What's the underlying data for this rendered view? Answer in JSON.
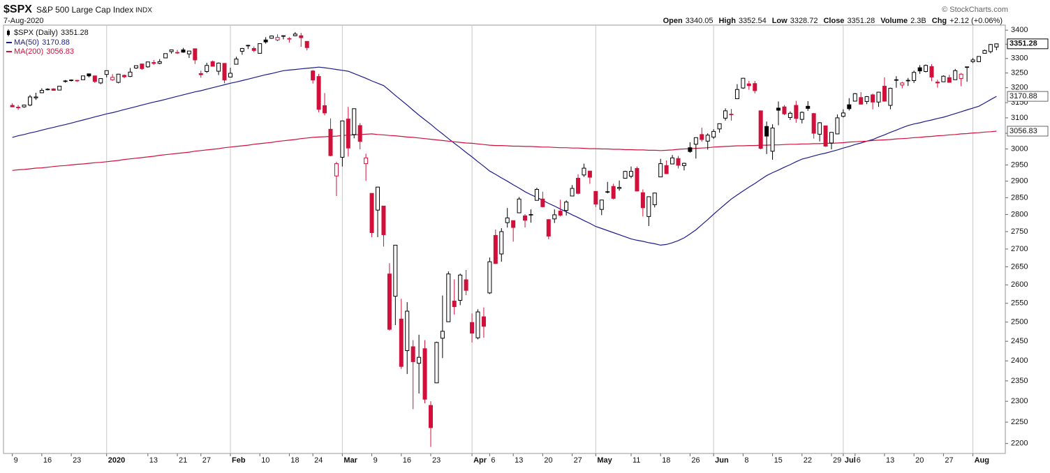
{
  "chart_data": {
    "type": "candlestick",
    "symbol": "$SPX",
    "title": "S&P 500 Large Cap Index",
    "exchange": "INDX",
    "date": "7-Aug-2020",
    "credit": "© StockCharts.com",
    "legend_label": "$SPX (Daily)",
    "stat_labels": [
      "Open",
      "High",
      "Low",
      "Close",
      "Volume",
      "Chg"
    ],
    "volume": "2.3B",
    "change": "+2.12 (+0.06%)",
    "up_color": "#000000",
    "down_color": "#d0103a",
    "log_scale": true,
    "ylim": [
      2177,
      3418
    ],
    "yticks": [
      2200,
      2250,
      2300,
      2350,
      2400,
      2450,
      2500,
      2550,
      2600,
      2650,
      2700,
      2750,
      2800,
      2850,
      2900,
      2950,
      3000,
      3050,
      3100,
      3150,
      3200,
      3250,
      3300,
      3350,
      3400
    ],
    "xlim": [
      -1.5,
      168.5
    ],
    "xticks": [
      {
        "value": 0,
        "label": "9"
      },
      {
        "value": 5,
        "label": "16"
      },
      {
        "value": 10,
        "label": "23"
      },
      {
        "value": 16,
        "label": "2020"
      },
      {
        "value": 23,
        "label": "13"
      },
      {
        "value": 28,
        "label": "21"
      },
      {
        "value": 32,
        "label": "27"
      },
      {
        "value": 37,
        "label": "Feb"
      },
      {
        "value": 42,
        "label": "10"
      },
      {
        "value": 47,
        "label": "18"
      },
      {
        "value": 51,
        "label": "24"
      },
      {
        "value": 56,
        "label": "Mar"
      },
      {
        "value": 61,
        "label": "9"
      },
      {
        "value": 66,
        "label": "16"
      },
      {
        "value": 71,
        "label": "23"
      },
      {
        "value": 78,
        "label": "Apr"
      },
      {
        "value": 81,
        "label": "6"
      },
      {
        "value": 85,
        "label": "13"
      },
      {
        "value": 90,
        "label": "20"
      },
      {
        "value": 95,
        "label": "27"
      },
      {
        "value": 99,
        "label": "May"
      },
      {
        "value": 105,
        "label": "11"
      },
      {
        "value": 110,
        "label": "18"
      },
      {
        "value": 115,
        "label": "26"
      },
      {
        "value": 119,
        "label": "Jun"
      },
      {
        "value": 124,
        "label": "8"
      },
      {
        "value": 129,
        "label": "15"
      },
      {
        "value": 134,
        "label": "22"
      },
      {
        "value": 139,
        "label": "29"
      },
      {
        "value": 141,
        "label": "Jul"
      },
      {
        "value": 143,
        "label": "6"
      },
      {
        "value": 148,
        "label": "13"
      },
      {
        "value": 153,
        "label": "20"
      },
      {
        "value": 158,
        "label": "27"
      },
      {
        "value": 163,
        "label": "Aug"
      }
    ],
    "open": [
      3141,
      3135,
      3136,
      3142,
      3166,
      3183,
      3195,
      3196,
      3192,
      3223,
      3226,
      3225,
      3227,
      3247,
      3240,
      3216,
      3245,
      3227,
      3218,
      3242,
      3238,
      3267,
      3281,
      3271,
      3286,
      3283,
      3302,
      3324,
      3321,
      3330,
      3316,
      3334,
      3248,
      3255,
      3289,
      3256,
      3283,
      3236,
      3280,
      3325,
      3344,
      3335,
      3318,
      3365,
      3371,
      3365,
      3378,
      3369,
      3380,
      3380,
      3360,
      3257,
      3238,
      3140,
      3063,
      2916,
      2974,
      3096,
      3046,
      3075,
      2954,
      2863,
      2813,
      2825,
      2630,
      2569,
      2508,
      2426,
      2436,
      2394,
      2431,
      2290,
      2345,
      2458,
      2501,
      2556,
      2558,
      2614,
      2499,
      2459,
      2514,
      2578,
      2739,
      2686,
      2776,
      2782,
      2805,
      2796,
      2799,
      2842,
      2846,
      2785,
      2787,
      2810,
      2812,
      2855,
      2909,
      2919,
      2931,
      2869,
      2815,
      2868,
      2884,
      2878,
      2909,
      2915,
      2939,
      2865,
      2794,
      2829,
      2913,
      2948,
      2953,
      2970,
      2948,
      3004,
      3015,
      3046,
      3025,
      3038,
      3064,
      3099,
      3112,
      3163,
      3199,
      3213,
      3214,
      3123,
      3072,
      2993,
      3132,
      3136,
      3101,
      3141,
      3095,
      3138,
      3114,
      3047,
      3074,
      3019,
      3048,
      3105,
      3143,
      3155,
      3167,
      3154,
      3176,
      3152,
      3205,
      3141,
      3225,
      3209,
      3224,
      3224,
      3268,
      3255,
      3272,
      3219,
      3220,
      3234,
      3227,
      3231,
      3270,
      3289,
      3289,
      3318,
      3324,
      3340.05
    ],
    "high": [
      3148,
      3142,
      3143,
      3176,
      3183,
      3198,
      3198,
      3198,
      3205,
      3226,
      3228,
      3226,
      3240,
      3248,
      3240,
      3232,
      3258,
      3246,
      3247,
      3245,
      3267,
      3275,
      3282,
      3288,
      3295,
      3298,
      3317,
      3330,
      3330,
      3337,
      3326,
      3334,
      3258,
      3285,
      3293,
      3286,
      3283,
      3268,
      3306,
      3337,
      3348,
      3342,
      3352,
      3375,
      3381,
      3385,
      3381,
      3375,
      3393,
      3390,
      3360,
      3260,
      3247,
      3182,
      3098,
      2960,
      3090,
      3136,
      3130,
      3083,
      2985,
      2863,
      2883,
      2825,
      2660,
      2711,
      2562,
      2553,
      2453,
      2467,
      2453,
      2300,
      2449,
      2571,
      2637,
      2615,
      2631,
      2641,
      2523,
      2534,
      2539,
      2676,
      2756,
      2760,
      2819,
      2782,
      2852,
      2801,
      2815,
      2880,
      2868,
      2786,
      2815,
      2844,
      2842,
      2888,
      2921,
      2954,
      2931,
      2869,
      2844,
      2898,
      2892,
      2902,
      2932,
      2945,
      2945,
      2875,
      2852,
      2865,
      2969,
      2964,
      2981,
      2978,
      2957,
      3021,
      3037,
      3068,
      3050,
      3063,
      3082,
      3131,
      3129,
      3212,
      3233,
      3223,
      3223,
      3123,
      3088,
      3079,
      3154,
      3142,
      3121,
      3156,
      3121,
      3155,
      3116,
      3086,
      3074,
      3053,
      3111,
      3128,
      3165,
      3182,
      3185,
      3172,
      3180,
      3186,
      3235,
      3200,
      3239,
      3220,
      3233,
      3258,
      3277,
      3279,
      3280,
      3227,
      3242,
      3244,
      3264,
      3250,
      3272,
      3302,
      3307,
      3331,
      3351,
      3352.54
    ],
    "low": [
      3135,
      3126,
      3133,
      3138,
      3159,
      3183,
      3191,
      3191,
      3192,
      3217,
      3221,
      3220,
      3227,
      3235,
      3216,
      3212,
      3235,
      3223,
      3215,
      3232,
      3236,
      3264,
      3261,
      3268,
      3278,
      3280,
      3302,
      3317,
      3316,
      3320,
      3302,
      3281,
      3234,
      3250,
      3272,
      3243,
      3215,
      3236,
      3280,
      3313,
      3333,
      3322,
      3317,
      3352,
      3369,
      3361,
      3367,
      3356,
      3378,
      3341,
      3328,
      3214,
      3118,
      3108,
      2977,
      2855,
      2945,
      2976,
      3034,
      2999,
      2901,
      2734,
      2734,
      2707,
      2478,
      2492,
      2380,
      2367,
      2281,
      2319,
      2295,
      2192,
      2345,
      2407,
      2501,
      2520,
      2545,
      2572,
      2447,
      2455,
      2459,
      2575,
      2658,
      2664,
      2762,
      2721,
      2805,
      2762,
      2776,
      2842,
      2821,
      2728,
      2775,
      2794,
      2797,
      2855,
      2860,
      2913,
      2892,
      2822,
      2798,
      2863,
      2845,
      2871,
      2909,
      2909,
      2869,
      2794,
      2766,
      2821,
      2913,
      2922,
      2953,
      2939,
      2933,
      2988,
      2970,
      3023,
      2998,
      3032,
      3052,
      3091,
      3091,
      3163,
      3196,
      3193,
      3181,
      2999,
      2984,
      2966,
      3076,
      3109,
      3093,
      3084,
      3082,
      3123,
      3033,
      3024,
      3007,
      2999,
      3047,
      3101,
      3124,
      3155,
      3144,
      3145,
      3128,
      3136,
      3153,
      3128,
      3200,
      3198,
      3206,
      3216,
      3247,
      3252,
      3222,
      3200,
      3220,
      3217,
      3227,
      3205,
      3220,
      3284,
      3288,
      3318,
      3318,
      3328.72
    ],
    "close": [
      3136,
      3133,
      3142,
      3169,
      3169,
      3191,
      3193,
      3191,
      3205,
      3221,
      3224,
      3223,
      3240,
      3240,
      3221,
      3231,
      3258,
      3235,
      3246,
      3237,
      3253,
      3275,
      3265,
      3288,
      3283,
      3289,
      3317,
      3330,
      3321,
      3322,
      3326,
      3295,
      3244,
      3276,
      3273,
      3284,
      3226,
      3249,
      3298,
      3335,
      3346,
      3328,
      3352,
      3358,
      3379,
      3374,
      3380,
      3370,
      3386,
      3373,
      3338,
      3226,
      3128,
      3116,
      2979,
      2954,
      3090,
      3003,
      3130,
      3024,
      2972,
      2747,
      2882,
      2741,
      2481,
      2711,
      2386,
      2529,
      2398,
      2409,
      2305,
      2237,
      2447,
      2476,
      2630,
      2541,
      2627,
      2585,
      2471,
      2527,
      2489,
      2664,
      2659,
      2750,
      2790,
      2762,
      2846,
      2783,
      2800,
      2875,
      2823,
      2737,
      2799,
      2798,
      2837,
      2878,
      2863,
      2940,
      2912,
      2831,
      2843,
      2868,
      2848,
      2881,
      2930,
      2930,
      2870,
      2820,
      2853,
      2864,
      2954,
      2923,
      2972,
      2949,
      2955,
      2992,
      3036,
      3030,
      3044,
      3056,
      3081,
      3123,
      3112,
      3194,
      3232,
      3207,
      3190,
      3002,
      3041,
      3067,
      3125,
      3113,
      3115,
      3098,
      3118,
      3131,
      3050,
      3084,
      3009,
      3053,
      3100,
      3116,
      3130,
      3180,
      3145,
      3170,
      3152,
      3185,
      3155,
      3198,
      3227,
      3216,
      3225,
      3252,
      3257,
      3276,
      3236,
      3216,
      3239,
      3218,
      3258,
      3246,
      3271,
      3295,
      3307,
      3328,
      3349,
      3351.28
    ],
    "overlays": [
      {
        "name": "MA(50)",
        "color": "#1c1c8c",
        "values": [
          3037,
          3042,
          3046,
          3051,
          3055,
          3060,
          3065,
          3069,
          3074,
          3078,
          3083,
          3088,
          3093,
          3098,
          3103,
          3108,
          3113,
          3117,
          3122,
          3127,
          3132,
          3137,
          3142,
          3147,
          3152,
          3156,
          3161,
          3166,
          3171,
          3176,
          3181,
          3186,
          3190,
          3195,
          3200,
          3205,
          3210,
          3215,
          3219,
          3224,
          3229,
          3234,
          3239,
          3244,
          3248,
          3253,
          3258,
          3260,
          3262,
          3264,
          3266,
          3268,
          3270,
          3268,
          3265,
          3262,
          3259,
          3256,
          3248,
          3240,
          3232,
          3223,
          3215,
          3207,
          3191,
          3174,
          3158,
          3142,
          3125,
          3109,
          3094,
          3079,
          3063,
          3048,
          3033,
          3018,
          3004,
          2989,
          2975,
          2960,
          2946,
          2931,
          2921,
          2910,
          2900,
          2889,
          2879,
          2868,
          2859,
          2851,
          2842,
          2833,
          2825,
          2816,
          2808,
          2799,
          2791,
          2782,
          2774,
          2765,
          2759,
          2753,
          2747,
          2741,
          2735,
          2729,
          2725,
          2722,
          2718,
          2715,
          2711,
          2713,
          2718,
          2724,
          2732,
          2743,
          2755,
          2770,
          2785,
          2801,
          2816,
          2831,
          2846,
          2858,
          2870,
          2882,
          2893,
          2905,
          2917,
          2926,
          2934,
          2943,
          2951,
          2960,
          2968,
          2973,
          2978,
          2983,
          2987,
          2992,
          2997,
          3003,
          3008,
          3014,
          3019,
          3025,
          3030,
          3038,
          3045,
          3053,
          3060,
          3068,
          3075,
          3080,
          3084,
          3089,
          3093,
          3098,
          3102,
          3108,
          3114,
          3120,
          3126,
          3132,
          3138,
          3149,
          3160,
          3170.88
        ]
      },
      {
        "name": "MA(200)",
        "color": "#d0103a",
        "values": [
          2933,
          2935,
          2936,
          2938,
          2940,
          2941,
          2943,
          2945,
          2947,
          2948,
          2950,
          2952,
          2953,
          2955,
          2957,
          2958,
          2960,
          2962,
          2964,
          2967,
          2969,
          2971,
          2973,
          2975,
          2977,
          2980,
          2982,
          2984,
          2986,
          2988,
          2990,
          2993,
          2995,
          2997,
          2999,
          3001,
          3004,
          3006,
          3008,
          3010,
          3012,
          3015,
          3017,
          3019,
          3021,
          3024,
          3026,
          3028,
          3030,
          3033,
          3035,
          3037,
          3038,
          3039,
          3040,
          3041,
          3043,
          3044,
          3045,
          3046,
          3047,
          3048,
          3046,
          3045,
          3043,
          3042,
          3040,
          3038,
          3037,
          3035,
          3033,
          3031,
          3029,
          3027,
          3025,
          3023,
          3021,
          3019,
          3018,
          3016,
          3014,
          3012,
          3011,
          3011,
          3010,
          3009,
          3009,
          3008,
          3008,
          3007,
          3006,
          3006,
          3005,
          3004,
          3004,
          3003,
          3003,
          3002,
          3001,
          3001,
          3000,
          3000,
          2999,
          2999,
          2998,
          2998,
          2997,
          2997,
          2996,
          2996,
          2995,
          2996,
          2997,
          2999,
          3000,
          3001,
          3002,
          3003,
          3004,
          3006,
          3007,
          3008,
          3009,
          3010,
          3010,
          3011,
          3011,
          3012,
          3012,
          3013,
          3013,
          3014,
          3015,
          3015,
          3016,
          3016,
          3017,
          3017,
          3018,
          3018,
          3019,
          3020,
          3022,
          3023,
          3024,
          3025,
          3027,
          3028,
          3029,
          3030,
          3032,
          3033,
          3034,
          3036,
          3037,
          3039,
          3040,
          3042,
          3043,
          3045,
          3046,
          3048,
          3049,
          3051,
          3052,
          3054,
          3055,
          3056.83
        ]
      }
    ]
  }
}
